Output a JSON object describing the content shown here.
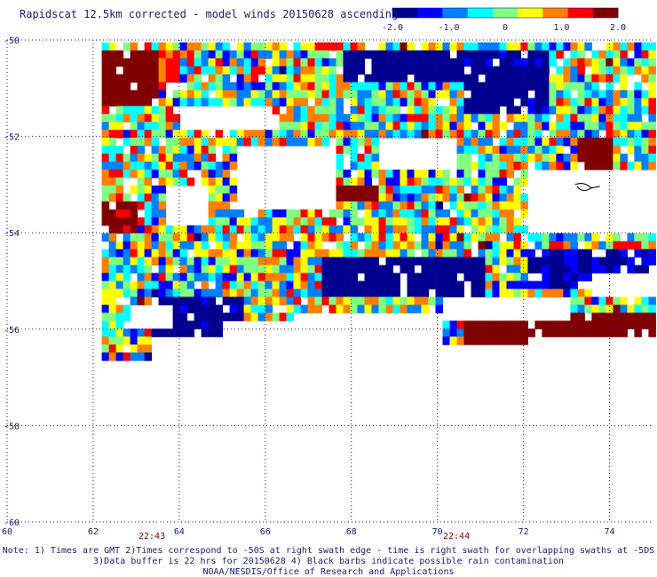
{
  "title": "Rapidscat 12.5km corrected - model winds 20150628 ascending",
  "colorbar": {
    "vmin": -2.0,
    "vmax": 2.0,
    "tick_labels": [
      "-2.0",
      "-1.0",
      "0",
      "1.0",
      "2.0"
    ],
    "colors": [
      "#000090",
      "#0000ff",
      "#0080ff",
      "#00ffff",
      "#80ff80",
      "#ffff00",
      "#ff8000",
      "#ff0000",
      "#800000"
    ]
  },
  "time_labels": [
    "22:43",
    "22:44"
  ],
  "footer": {
    "line1": "Note: 1) Times are GMT 2)Times correspond to -50S at right swath edge - time is right swath for overlapping swaths at -5DS",
    "line2": "3)Data buffer is 22 hrs for 20150628 4) Black barbs indicate possible rain contamination",
    "line3": "NOAA/NESDIS/Office of Research and Applications"
  },
  "chart_data": {
    "type": "heatmap",
    "title": "Rapidscat 12.5km corrected - model winds 20150628 ascending",
    "x_tick_labels": [
      "60",
      "62",
      "64",
      "66",
      "68",
      "70",
      "72",
      "74"
    ],
    "y_tick_labels": [
      "-50",
      "-52",
      "-54",
      "-56",
      "-58",
      "-60"
    ],
    "xlim": [
      60,
      75
    ],
    "ylim": [
      -60,
      -50
    ],
    "grid": true,
    "value_range": [
      -2.0,
      2.0
    ],
    "regions": [
      {
        "name": "upper-left high",
        "x": [
          62.2,
          63.4
        ],
        "y": [
          -51.3,
          -50.1
        ],
        "value": 2.0
      },
      {
        "name": "upper-left high edge",
        "x": [
          63.2,
          64.0
        ],
        "y": [
          -51.0,
          -50.1
        ],
        "value": 1.2
      },
      {
        "name": "left-mid high",
        "x": [
          62.2,
          63.0
        ],
        "y": [
          -54.0,
          -53.3
        ],
        "value": 1.8
      },
      {
        "name": "center high",
        "x": [
          67.3,
          68.5
        ],
        "y": [
          -53.3,
          -52.9
        ],
        "value": 1.9
      },
      {
        "name": "top-center low",
        "x": [
          67.8,
          70.5
        ],
        "y": [
          -50.8,
          -50.1
        ],
        "value": -2.0
      },
      {
        "name": "upper-right low",
        "x": [
          70.5,
          72.5
        ],
        "y": [
          -51.5,
          -50.1
        ],
        "value": -1.8
      },
      {
        "name": "middle low band",
        "x": [
          67.2,
          71.0
        ],
        "y": [
          -55.3,
          -54.4
        ],
        "value": -1.9
      },
      {
        "name": "right low band",
        "x": [
          72.0,
          75.0
        ],
        "y": [
          -55.0,
          -54.2
        ],
        "value": -1.6
      },
      {
        "name": "lower-left low",
        "x": [
          63.2,
          65.5
        ],
        "y": [
          -56.0,
          -55.2
        ],
        "value": -1.8
      },
      {
        "name": "lower-right high",
        "x": [
          70.6,
          75.0
        ],
        "y": [
          -56.2,
          -55.6
        ],
        "value": 2.0
      },
      {
        "name": "right-upper high",
        "x": [
          73.2,
          74.0
        ],
        "y": [
          -52.6,
          -52.0
        ],
        "value": 1.9
      }
    ],
    "annotation": "Black barbs indicate possible rain contamination"
  }
}
